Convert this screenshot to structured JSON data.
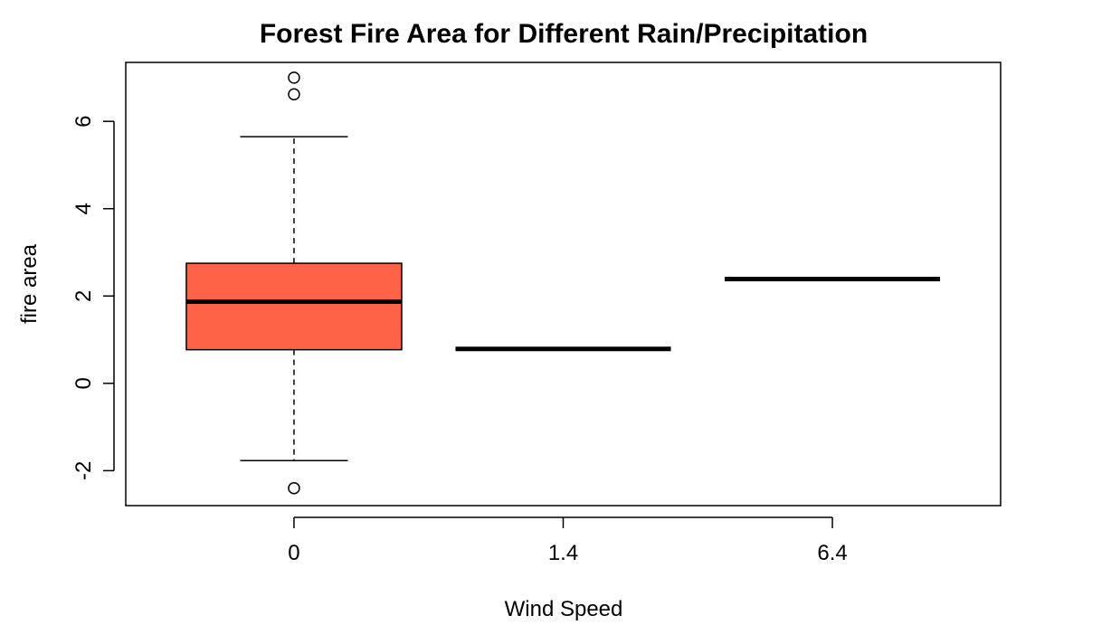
{
  "chart_data": {
    "type": "boxplot",
    "title": "Forest Fire Area for Different Rain/Precipitation",
    "xlabel": "Wind Speed",
    "ylabel": "fire area",
    "categories": [
      "0",
      "1.4",
      "6.4"
    ],
    "ylim": [
      -2.8,
      7.35
    ],
    "y_ticks": [
      -2,
      0,
      2,
      4,
      6
    ],
    "grid": false,
    "boxes": [
      {
        "category": "0",
        "lower_whisker": -1.77,
        "q1": 0.77,
        "median": 1.87,
        "q3": 2.75,
        "upper_whisker": 5.65,
        "outliers": [
          7.0,
          6.62,
          -2.4
        ],
        "fill": "#FF6347"
      },
      {
        "category": "1.4",
        "lower_whisker": 0.79,
        "q1": 0.79,
        "median": 0.79,
        "q3": 0.79,
        "upper_whisker": 0.79,
        "outliers": [],
        "fill": "#FF6347"
      },
      {
        "category": "6.4",
        "lower_whisker": 2.39,
        "q1": 2.39,
        "median": 2.39,
        "q3": 2.39,
        "upper_whisker": 2.39,
        "outliers": [],
        "fill": "#FF6347"
      }
    ]
  }
}
